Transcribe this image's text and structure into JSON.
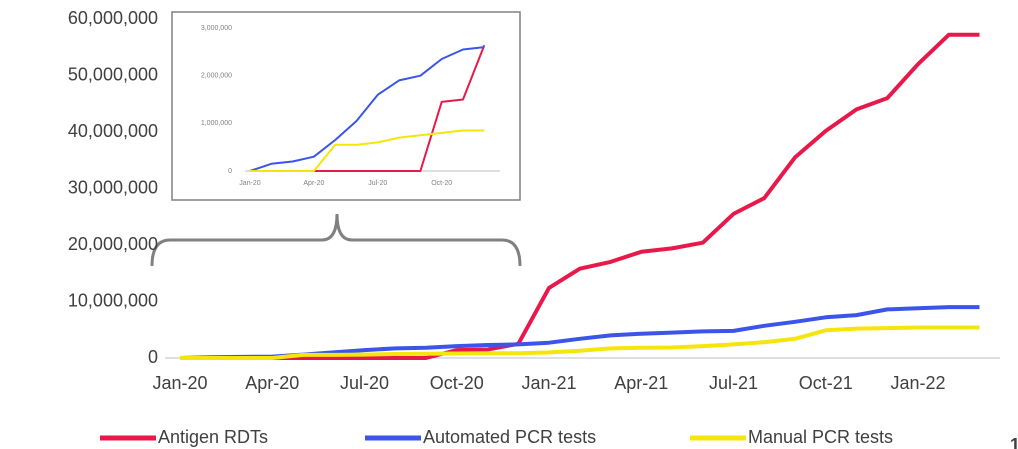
{
  "chart_data": [
    {
      "type": "line",
      "categories": [
        "Jan-20",
        null,
        null,
        "Apr-20",
        null,
        null,
        "Jul-20",
        null,
        null,
        "Oct-20",
        null,
        null,
        "Jan-21",
        null,
        null,
        "Apr-21",
        null,
        null,
        "Jul-21",
        null,
        null,
        "Oct-21",
        null,
        null,
        "Jan-22",
        null,
        null
      ],
      "series": [
        {
          "name": "Antigen RDTs",
          "color": "#e8194a",
          "values": [
            0,
            0,
            0,
            0,
            0,
            0,
            0,
            0,
            0,
            1400000,
            1500000,
            2500000,
            12400000,
            15800000,
            17000000,
            18800000,
            19400000,
            20400000,
            25500000,
            28300000,
            35500000,
            40200000,
            44000000,
            46000000,
            52000000,
            57200000,
            57200000
          ]
        },
        {
          "name": "Automated PCR tests",
          "color": "#3a55e8",
          "values": [
            0,
            150000,
            200000,
            250000,
            600000,
            1000000,
            1400000,
            1700000,
            1800000,
            2100000,
            2300000,
            2400000,
            2700000,
            3400000,
            4000000,
            4300000,
            4500000,
            4700000,
            4800000,
            5700000,
            6400000,
            7200000,
            7600000,
            8600000,
            8800000,
            9000000,
            9000000
          ]
        },
        {
          "name": "Manual PCR tests",
          "color": "#f5e50c",
          "values": [
            0,
            0,
            0,
            0,
            550000,
            550000,
            600000,
            700000,
            750000,
            800000,
            850000,
            850000,
            1000000,
            1300000,
            1700000,
            1800000,
            1850000,
            2100000,
            2400000,
            2800000,
            3400000,
            4900000,
            5200000,
            5300000,
            5400000,
            5400000,
            5400000
          ]
        }
      ],
      "ylim": [
        0,
        60000000
      ],
      "yticks": [
        0,
        {
          "value": 10000000,
          "label": "10,000,000"
        },
        {
          "value": 20000000,
          "label": "20,000,000"
        },
        {
          "value": 30000000,
          "label": "30,000,000"
        },
        {
          "value": 40000000,
          "label": "40,000,000"
        },
        {
          "value": 50000000,
          "label": "50,000,000"
        },
        {
          "value": 60000000,
          "label": "60,000,000"
        }
      ],
      "legend": "bottom"
    },
    {
      "type": "line",
      "categories": [
        "Jan-20",
        null,
        null,
        "Apr-20",
        null,
        null,
        "Jul-20",
        null,
        null,
        "Oct-20",
        null,
        null
      ],
      "series": [
        {
          "name": "Antigen RDTs",
          "color": "#e8194a",
          "values": [
            0,
            0,
            0,
            0,
            0,
            0,
            0,
            0,
            0,
            1450000,
            1500000,
            2640000
          ]
        },
        {
          "name": "Automated PCR tests",
          "color": "#3a55e8",
          "values": [
            0,
            150000,
            200000,
            300000,
            650000,
            1050000,
            1600000,
            1900000,
            2000000,
            2350000,
            2550000,
            2600000
          ]
        },
        {
          "name": "Manual PCR tests",
          "color": "#f5e50c",
          "values": [
            0,
            0,
            0,
            0,
            550000,
            550000,
            600000,
            700000,
            750000,
            800000,
            850000,
            850000
          ]
        }
      ],
      "ylim": [
        0,
        3000000
      ],
      "yticks": [
        0,
        {
          "value": 1000000,
          "label": "1,000,000"
        },
        {
          "value": 2000000,
          "label": "2,000,000"
        },
        {
          "value": 3000000,
          "label": "3,000,000"
        }
      ]
    }
  ],
  "page_number": "1"
}
